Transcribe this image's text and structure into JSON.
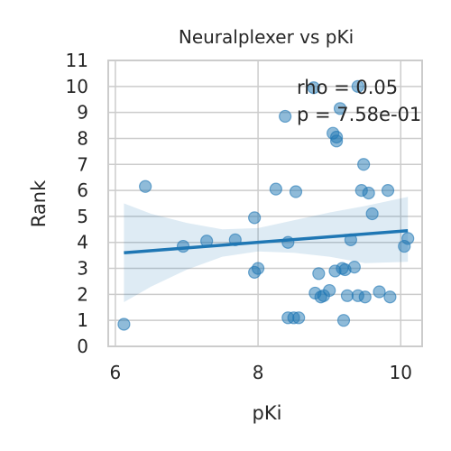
{
  "chart_data": {
    "type": "scatter",
    "title": "Neuralplexer vs pKi",
    "xlabel": "pKi",
    "ylabel": "Rank",
    "xlim": [
      5.9,
      10.3
    ],
    "ylim": [
      0,
      11
    ],
    "xticks": [
      6,
      8,
      10
    ],
    "yticks": [
      0,
      1,
      2,
      3,
      4,
      5,
      6,
      7,
      8,
      9,
      10,
      11
    ],
    "grid": true,
    "annotation": {
      "line1": "rho = 0.05",
      "line2": "p = 7.58e-01",
      "placement": "top-right"
    },
    "points": [
      {
        "x": 6.12,
        "y": 0.85
      },
      {
        "x": 6.42,
        "y": 6.15
      },
      {
        "x": 6.95,
        "y": 3.85
      },
      {
        "x": 7.28,
        "y": 4.05
      },
      {
        "x": 7.68,
        "y": 4.1
      },
      {
        "x": 7.95,
        "y": 4.95
      },
      {
        "x": 7.95,
        "y": 2.85
      },
      {
        "x": 8.0,
        "y": 3.0
      },
      {
        "x": 8.25,
        "y": 6.05
      },
      {
        "x": 8.38,
        "y": 8.85
      },
      {
        "x": 8.42,
        "y": 4.0
      },
      {
        "x": 8.42,
        "y": 1.1
      },
      {
        "x": 8.5,
        "y": 1.1
      },
      {
        "x": 8.57,
        "y": 1.1
      },
      {
        "x": 8.53,
        "y": 5.95
      },
      {
        "x": 8.78,
        "y": 9.95
      },
      {
        "x": 8.8,
        "y": 2.05
      },
      {
        "x": 8.85,
        "y": 2.8
      },
      {
        "x": 8.88,
        "y": 1.9
      },
      {
        "x": 8.92,
        "y": 1.95
      },
      {
        "x": 9.0,
        "y": 2.15
      },
      {
        "x": 9.05,
        "y": 8.2
      },
      {
        "x": 9.08,
        "y": 2.9
      },
      {
        "x": 9.1,
        "y": 8.05
      },
      {
        "x": 9.1,
        "y": 7.9
      },
      {
        "x": 9.15,
        "y": 9.15
      },
      {
        "x": 9.18,
        "y": 3.0
      },
      {
        "x": 9.2,
        "y": 1.0
      },
      {
        "x": 9.22,
        "y": 2.95
      },
      {
        "x": 9.25,
        "y": 1.95
      },
      {
        "x": 9.3,
        "y": 4.1
      },
      {
        "x": 9.35,
        "y": 3.05
      },
      {
        "x": 9.4,
        "y": 10.0
      },
      {
        "x": 9.4,
        "y": 1.95
      },
      {
        "x": 9.45,
        "y": 6.0
      },
      {
        "x": 9.48,
        "y": 7.0
      },
      {
        "x": 9.5,
        "y": 1.9
      },
      {
        "x": 9.55,
        "y": 5.9
      },
      {
        "x": 9.6,
        "y": 5.1
      },
      {
        "x": 9.7,
        "y": 2.1
      },
      {
        "x": 9.82,
        "y": 6.0
      },
      {
        "x": 9.85,
        "y": 1.9
      },
      {
        "x": 10.05,
        "y": 3.85
      },
      {
        "x": 10.1,
        "y": 4.15
      }
    ],
    "regression": {
      "x": [
        6.12,
        10.1
      ],
      "y": [
        3.6,
        4.45
      ]
    },
    "confidence_band": {
      "x": [
        6.12,
        6.5,
        7.0,
        7.5,
        8.0,
        8.5,
        9.0,
        9.5,
        10.1
      ],
      "lower": [
        1.7,
        2.3,
        2.95,
        3.45,
        3.65,
        3.6,
        3.45,
        3.2,
        3.25
      ],
      "upper": [
        5.5,
        5.1,
        4.75,
        4.5,
        4.55,
        4.85,
        5.15,
        5.4,
        5.75
      ]
    }
  }
}
